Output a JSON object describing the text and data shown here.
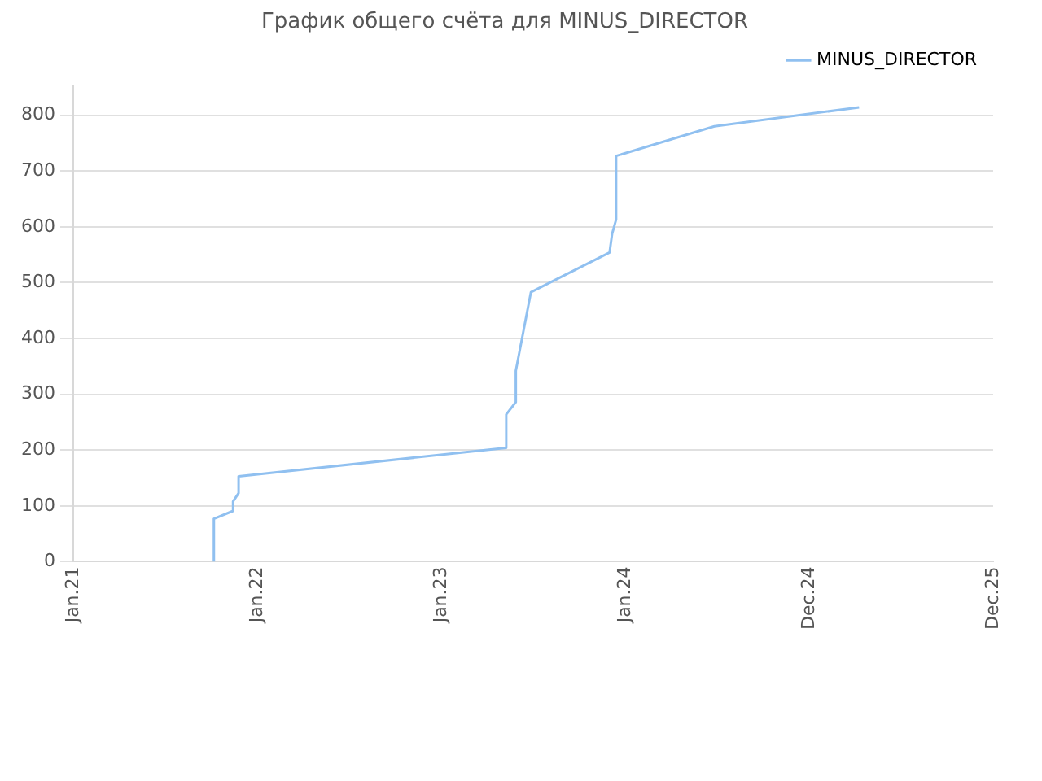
{
  "chart_data": {
    "type": "line",
    "title": "График общего счёта для MINUS_DIRECTOR",
    "x": [
      "2021-10-07",
      "2021-10-07",
      "2021-11-14",
      "2021-11-14",
      "2021-11-25",
      "2021-11-25",
      "2023-05-10",
      "2023-05-10",
      "2023-05-29",
      "2023-05-29",
      "2023-06-28",
      "2023-12-01",
      "2023-12-06",
      "2023-12-14",
      "2023-12-14",
      "2024-06-26",
      "2025-04-09"
    ],
    "series": [
      {
        "name": "MINUS_DIRECTOR",
        "color": "#90c0f0",
        "values": [
          0,
          77,
          91,
          108,
          123,
          153,
          204,
          264,
          286,
          342,
          483,
          554,
          587,
          613,
          727,
          780,
          814
        ]
      }
    ],
    "xlim": [
      "2021-01-01",
      "2025-12-31"
    ],
    "xticks": [
      {
        "value": "2021-01-01",
        "label": "Jan.21"
      },
      {
        "value": "2022-01-01",
        "label": "Jan.22"
      },
      {
        "value": "2023-01-01",
        "label": "Jan.23"
      },
      {
        "value": "2024-01-01",
        "label": "Jan.24"
      },
      {
        "value": "2024-12-31",
        "label": "Dec.24"
      },
      {
        "value": "2025-12-31",
        "label": "Dec.25"
      }
    ],
    "ylim": [
      0,
      853
    ],
    "yticks": [
      0,
      100,
      200,
      300,
      400,
      500,
      600,
      700,
      800
    ],
    "grid": "y",
    "legend": "top right",
    "marker": "none",
    "line_style": "solid"
  }
}
